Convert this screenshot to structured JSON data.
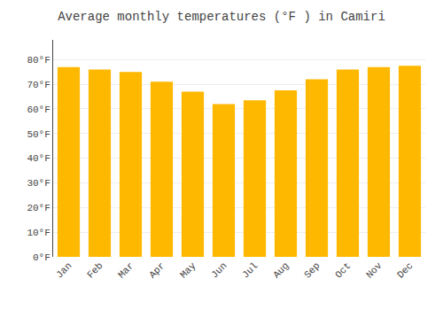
{
  "chart_data": {
    "type": "bar",
    "title": "Average monthly temperatures (°F ) in Camiri",
    "categories": [
      "Jan",
      "Feb",
      "Mar",
      "Apr",
      "May",
      "Jun",
      "Jul",
      "Aug",
      "Sep",
      "Oct",
      "Nov",
      "Dec"
    ],
    "values": [
      77,
      76,
      75,
      71,
      67,
      62,
      63.5,
      67.5,
      72,
      76,
      77,
      77.5
    ],
    "color": "#FFB800",
    "ylim": [
      0,
      88
    ],
    "yticks": [
      {
        "value": 0,
        "label": "0°F"
      },
      {
        "value": 10,
        "label": "10°F"
      },
      {
        "value": 20,
        "label": "20°F"
      },
      {
        "value": 30,
        "label": "30°F"
      },
      {
        "value": 40,
        "label": "40°F"
      },
      {
        "value": 50,
        "label": "50°F"
      },
      {
        "value": 60,
        "label": "60°F"
      },
      {
        "value": 70,
        "label": "70°F"
      },
      {
        "value": 80,
        "label": "80°F"
      }
    ],
    "grid": true
  }
}
